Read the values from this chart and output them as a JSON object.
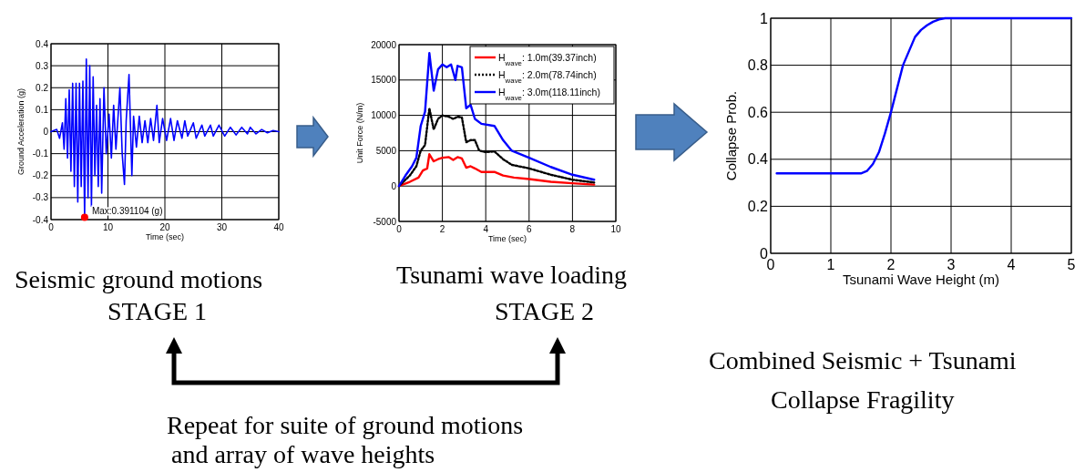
{
  "chart_data": [
    {
      "type": "line",
      "xlabel": "Time (sec)",
      "ylabel": "Ground Acceleration (g)",
      "xlim": [
        0,
        40
      ],
      "xticks": [
        0,
        10,
        20,
        30,
        40
      ],
      "ylim": [
        -0.4,
        0.4
      ],
      "yticks": [
        -0.4,
        -0.3,
        -0.2,
        -0.1,
        0,
        0.1,
        0.2,
        0.3,
        0.4
      ],
      "grid": true,
      "legend": false,
      "series": [
        {
          "color": "#0000ff",
          "x": [
            0,
            1,
            1.5,
            2,
            2.3,
            2.6,
            2.9,
            3.2,
            3.5,
            3.8,
            4.1,
            4.4,
            4.7,
            5.0,
            5.3,
            5.6,
            5.9,
            6.2,
            6.5,
            6.8,
            7.1,
            7.4,
            7.7,
            8.0,
            8.3,
            8.6,
            8.9,
            9.3,
            9.7,
            10.2,
            10.6,
            11,
            11.4,
            12.1,
            12.5,
            12.9,
            13.2,
            13.7,
            14.2,
            14.5,
            15,
            15.5,
            16,
            16.5,
            17,
            17.5,
            18,
            18.6,
            19,
            19.6,
            20.3,
            21,
            21.6,
            22.2,
            23,
            23.5,
            24,
            25,
            25.5,
            26.5,
            27,
            28,
            28.5,
            29.5,
            30.5,
            31.5,
            32.5,
            33.5,
            34.5,
            35,
            36,
            37,
            38,
            39,
            40
          ],
          "values": [
            0,
            0.01,
            -0.03,
            0.04,
            -0.08,
            0.15,
            -0.12,
            0.19,
            -0.18,
            0.22,
            -0.25,
            0.22,
            -0.32,
            0.22,
            -0.25,
            0.23,
            -0.39,
            0.33,
            -0.3,
            0.3,
            -0.34,
            0.25,
            -0.2,
            0.12,
            -0.25,
            0.15,
            -0.28,
            0.2,
            -0.1,
            0.08,
            -0.12,
            0.12,
            -0.08,
            0.2,
            -0.1,
            -0.24,
            0.05,
            0.26,
            -0.2,
            0.07,
            -0.07,
            0.07,
            -0.05,
            0.05,
            -0.05,
            0.06,
            -0.04,
            0.12,
            -0.05,
            0.06,
            -0.04,
            0.06,
            -0.04,
            0.05,
            -0.03,
            0.05,
            -0.02,
            0.04,
            -0.03,
            0.03,
            -0.02,
            0.03,
            -0.02,
            0.03,
            -0.02,
            0.02,
            -0.015,
            0.02,
            -0.01,
            0.02,
            -0.01,
            0.01,
            -0.005,
            0.005,
            0
          ]
        },
        {
          "type": "scatter",
          "color": "#ff0000",
          "x": [
            5.9
          ],
          "values": [
            -0.39
          ],
          "marker": "circle"
        }
      ],
      "annotations": [
        {
          "text": "Max:0.391104 (g)",
          "x": 5.9,
          "y": -0.39
        },
        "Seismic ground motions",
        "STAGE 1",
        "Repeat for suite of ground motions",
        "and array of wave heights"
      ]
    },
    {
      "type": "line",
      "xlabel": "Time (sec)",
      "ylabel": "Unit Force (N/m)",
      "xlim": [
        0,
        10
      ],
      "xticks": [
        0,
        2,
        4,
        6,
        8,
        10
      ],
      "ylim": [
        -5000,
        20000
      ],
      "yticks": [
        -5000,
        0,
        5000,
        10000,
        15000,
        20000
      ],
      "grid": true,
      "legend": "top right",
      "series": [
        {
          "name": "H$_{wave}$: 1.0m(39.37inch)",
          "color": "#ff0000",
          "line_style": "solid",
          "x": [
            0,
            0.5,
            0.9,
            1.1,
            1.3,
            1.4,
            1.6,
            1.8,
            2,
            2.3,
            2.5,
            2.7,
            2.9,
            3.1,
            3.3,
            3.5,
            3.8,
            4.4,
            4.8,
            5.3,
            6,
            7,
            8,
            9
          ],
          "values": [
            0,
            600,
            1200,
            2200,
            2500,
            4500,
            3500,
            3800,
            4000,
            4100,
            3700,
            4100,
            3900,
            2600,
            2800,
            2500,
            2000,
            2000,
            1500,
            1200,
            1000,
            600,
            400,
            200
          ]
        },
        {
          "name": "H$_{wave}$: 2.0m(78.74inch)",
          "color": "#000000",
          "line_style": "dotted",
          "x": [
            0,
            0.5,
            0.8,
            1,
            1.2,
            1.4,
            1.6,
            1.8,
            2,
            2.3,
            2.5,
            2.7,
            2.9,
            3.1,
            3.3,
            3.5,
            3.7,
            4,
            4.4,
            4.8,
            5.2,
            6,
            7,
            8,
            9
          ],
          "values": [
            0,
            1500,
            2800,
            5000,
            5800,
            11000,
            8000,
            9500,
            10000,
            9800,
            9500,
            9800,
            9700,
            6200,
            6500,
            6500,
            5000,
            4800,
            4900,
            3800,
            3000,
            2500,
            1600,
            900,
            500
          ]
        },
        {
          "name": "H$_{wave}$: 3.0m(118.11inch)",
          "color": "#0000ff",
          "line_style": "solid",
          "x": [
            0,
            0.3,
            0.6,
            0.8,
            1,
            1.2,
            1.4,
            1.6,
            1.8,
            2,
            2.2,
            2.4,
            2.6,
            2.7,
            2.9,
            3.1,
            3.3,
            3.5,
            3.8,
            4.4,
            4.8,
            5.2,
            6,
            7,
            8,
            9
          ],
          "values": [
            0,
            1500,
            2800,
            4000,
            8500,
            10500,
            18800,
            13500,
            16500,
            17200,
            16800,
            17200,
            15000,
            17000,
            16800,
            11000,
            11500,
            9500,
            8800,
            8500,
            6500,
            5000,
            4000,
            2700,
            1600,
            900
          ]
        }
      ],
      "annotations": [
        "Tsunami wave loading",
        "STAGE 2"
      ]
    },
    {
      "type": "line",
      "xlabel": "Tsunami Wave Height (m)",
      "ylabel": "Collapse Prob.",
      "xlim": [
        0,
        5
      ],
      "xticks": [
        0,
        1,
        2,
        3,
        4,
        5
      ],
      "ylim": [
        0,
        1
      ],
      "yticks": [
        0,
        0.2,
        0.4,
        0.6,
        0.8,
        1
      ],
      "grid": true,
      "legend": false,
      "series": [
        {
          "color": "#0000ff",
          "x": [
            0.1,
            1.5,
            1.6,
            1.7,
            1.8,
            1.9,
            2,
            2.1,
            2.2,
            2.3,
            2.4,
            2.5,
            2.6,
            2.7,
            2.8,
            2.9,
            3,
            5
          ],
          "values": [
            0.34,
            0.34,
            0.35,
            0.38,
            0.43,
            0.51,
            0.6,
            0.7,
            0.8,
            0.86,
            0.92,
            0.95,
            0.97,
            0.985,
            0.995,
            1,
            1,
            1
          ]
        }
      ],
      "annotations": [
        "Combined Seismic + Tsunami",
        "Collapse Fragility"
      ]
    }
  ]
}
